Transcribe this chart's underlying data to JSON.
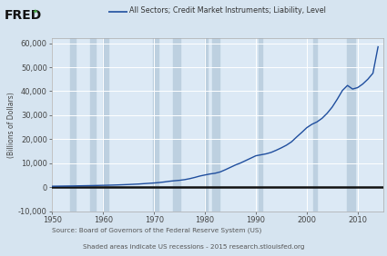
{
  "title": "All Sectors; Credit Market Instruments; Liability, Level",
  "ylabel": "(Billions of Dollars)",
  "source_line1": "Source: Board of Governors of the Federal Reserve System (US)",
  "source_line2": "Shaded areas indicate US recessions - 2015 research.stlouisfed.org",
  "fred_text": "FRED",
  "xlim": [
    1950,
    2015
  ],
  "ylim": [
    -10000,
    62000
  ],
  "yticks": [
    -10000,
    0,
    10000,
    20000,
    30000,
    40000,
    50000,
    60000
  ],
  "xticks": [
    1950,
    1960,
    1970,
    1980,
    1990,
    2000,
    2010
  ],
  "line_color": "#1f4e9e",
  "zero_line_color": "#111111",
  "bg_color": "#d6e4f0",
  "plot_bg_color": "#dce9f5",
  "recession_color": "#bdd0e0",
  "recession_bands": [
    [
      1953.5,
      1954.5
    ],
    [
      1957.5,
      1958.5
    ],
    [
      1960.0,
      1961.0
    ],
    [
      1969.8,
      1970.9
    ],
    [
      1973.8,
      1975.2
    ],
    [
      1980.0,
      1980.6
    ],
    [
      1981.5,
      1982.9
    ],
    [
      1990.5,
      1991.2
    ],
    [
      2001.2,
      2001.9
    ],
    [
      2007.9,
      2009.5
    ]
  ],
  "data_years": [
    1950,
    1951,
    1952,
    1953,
    1954,
    1955,
    1956,
    1957,
    1958,
    1959,
    1960,
    1961,
    1962,
    1963,
    1964,
    1965,
    1966,
    1967,
    1968,
    1969,
    1970,
    1971,
    1972,
    1973,
    1974,
    1975,
    1976,
    1977,
    1978,
    1979,
    1980,
    1981,
    1982,
    1983,
    1984,
    1985,
    1986,
    1987,
    1988,
    1989,
    1990,
    1991,
    1992,
    1993,
    1994,
    1995,
    1996,
    1997,
    1998,
    1999,
    2000,
    2001,
    2002,
    2003,
    2004,
    2005,
    2006,
    2007,
    2008,
    2009,
    2010,
    2011,
    2012,
    2013,
    2014
  ],
  "data_values": [
    400,
    430,
    460,
    490,
    510,
    560,
    600,
    640,
    670,
    730,
    780,
    830,
    890,
    960,
    1040,
    1130,
    1230,
    1330,
    1480,
    1620,
    1760,
    1940,
    2180,
    2470,
    2690,
    2870,
    3150,
    3560,
    4070,
    4650,
    5100,
    5520,
    5820,
    6370,
    7280,
    8280,
    9270,
    10100,
    11100,
    12100,
    13100,
    13500,
    13900,
    14500,
    15400,
    16400,
    17500,
    18900,
    20900,
    22800,
    24800,
    26200,
    27200,
    28700,
    30800,
    33400,
    36700,
    40300,
    42400,
    40900,
    41500,
    43000,
    45000,
    47500,
    58500
  ]
}
